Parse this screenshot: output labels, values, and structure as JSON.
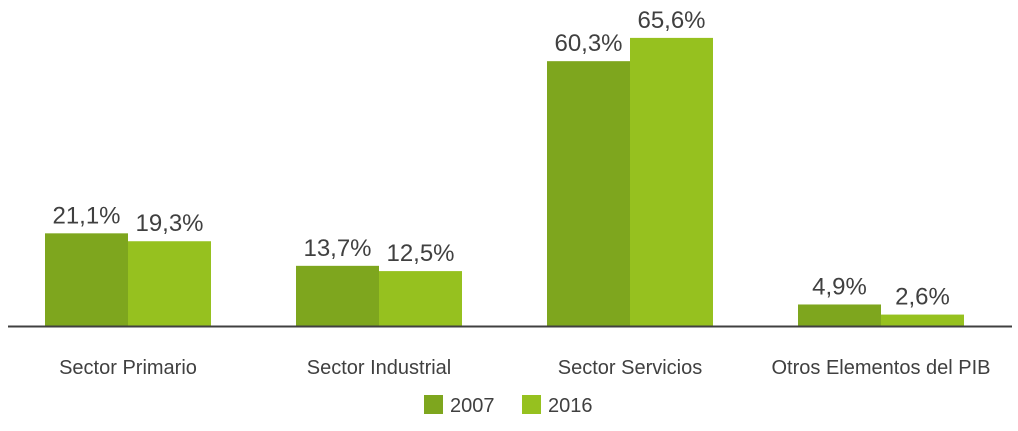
{
  "chart_data": {
    "type": "bar",
    "categories": [
      "Sector Primario",
      "Sector Industrial",
      "Sector Servicios",
      "Otros Elementos del PIB"
    ],
    "series": [
      {
        "name": "2007",
        "values": [
          21.1,
          13.7,
          60.3,
          4.9
        ],
        "labels": [
          "21,1%",
          "13,7%",
          "60,3%",
          "4,9%"
        ],
        "color": "#7ea61e"
      },
      {
        "name": "2016",
        "values": [
          19.3,
          12.5,
          65.6,
          2.6
        ],
        "labels": [
          "19,3%",
          "12,5%",
          "65,6%",
          "2,6%"
        ],
        "color": "#96c11f"
      }
    ],
    "ylim": [
      0,
      70
    ],
    "grid": false,
    "legend_position": "bottom",
    "axis_color": "#404040",
    "text_color": "#404040"
  }
}
